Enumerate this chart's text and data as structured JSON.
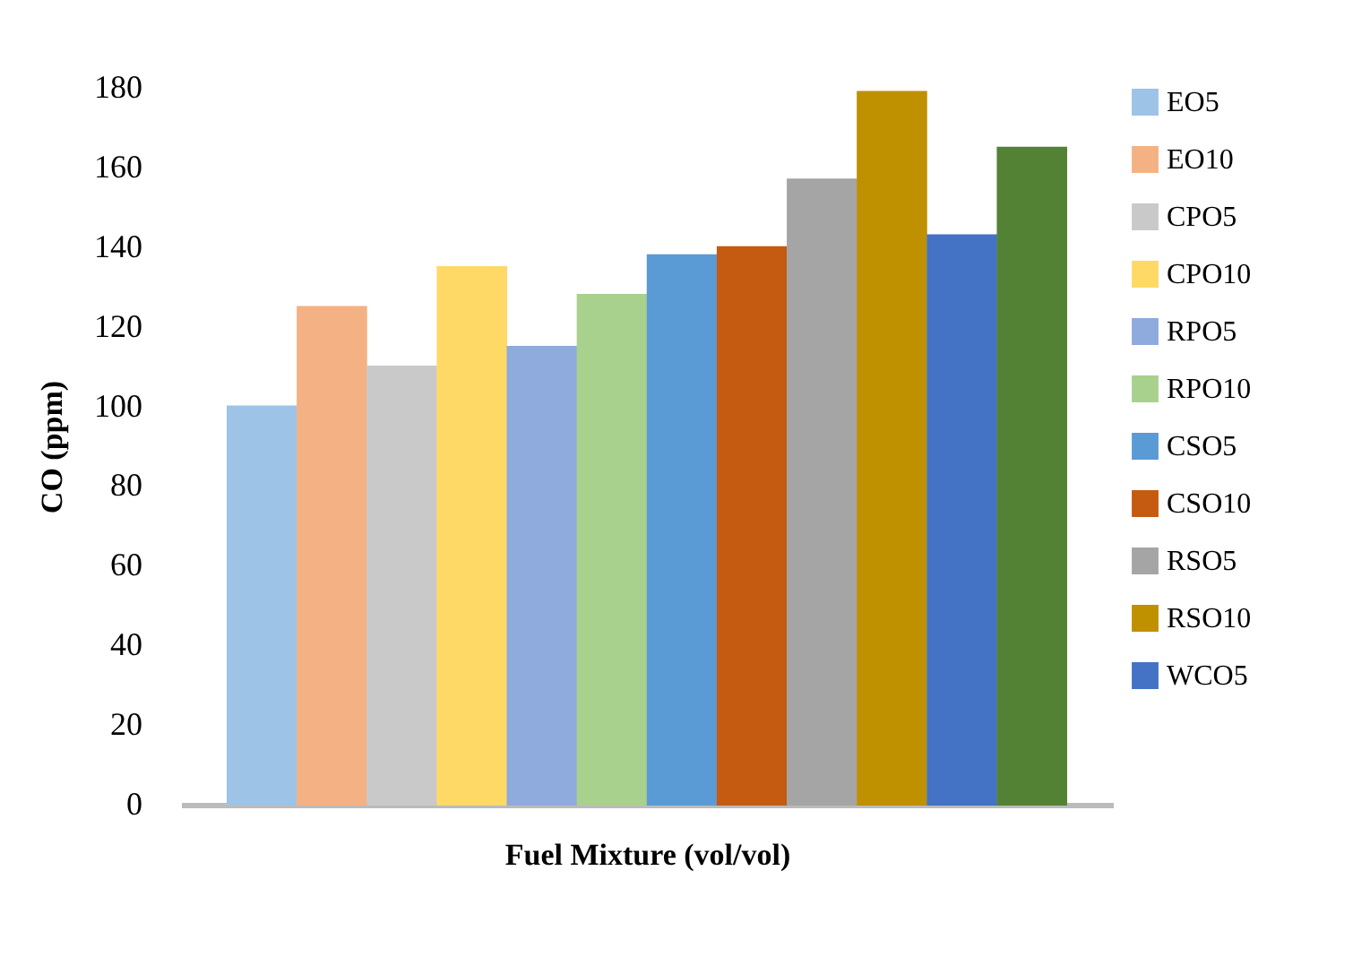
{
  "chart_data": {
    "type": "bar",
    "xlabel": "Fuel Mixture (vol/vol)",
    "ylabel": "CO (ppm)",
    "categories": [
      null
    ],
    "ylim": [
      0,
      180
    ],
    "yticks": [
      0,
      20,
      40,
      60,
      80,
      100,
      120,
      140,
      160,
      180
    ],
    "grid": false,
    "legend": "right",
    "tick_labels": "y",
    "series": [
      {
        "name": "EO5",
        "color": "#9dc3e6",
        "values": [
          100
        ]
      },
      {
        "name": "EO10",
        "color": "#f4b183",
        "values": [
          125
        ]
      },
      {
        "name": "CPO5",
        "color": "#c9c9c9",
        "values": [
          110
        ]
      },
      {
        "name": "CPO10",
        "color": "#ffd966",
        "values": [
          135
        ]
      },
      {
        "name": "RPO5",
        "color": "#8faadc",
        "values": [
          115
        ]
      },
      {
        "name": "RPO10",
        "color": "#a9d18e",
        "values": [
          128
        ]
      },
      {
        "name": "CSO5",
        "color": "#5b9bd5",
        "values": [
          138
        ]
      },
      {
        "name": "CSO10",
        "color": "#c55a11",
        "values": [
          140
        ]
      },
      {
        "name": "RSO5",
        "color": "#a5a5a5",
        "values": [
          157
        ]
      },
      {
        "name": "RSO10",
        "color": "#bf9000",
        "values": [
          179
        ]
      },
      {
        "name": "WCO5",
        "color": "#4472c4",
        "values": [
          143
        ]
      },
      {
        "color": "#548235",
        "values": [
          165
        ]
      }
    ]
  }
}
